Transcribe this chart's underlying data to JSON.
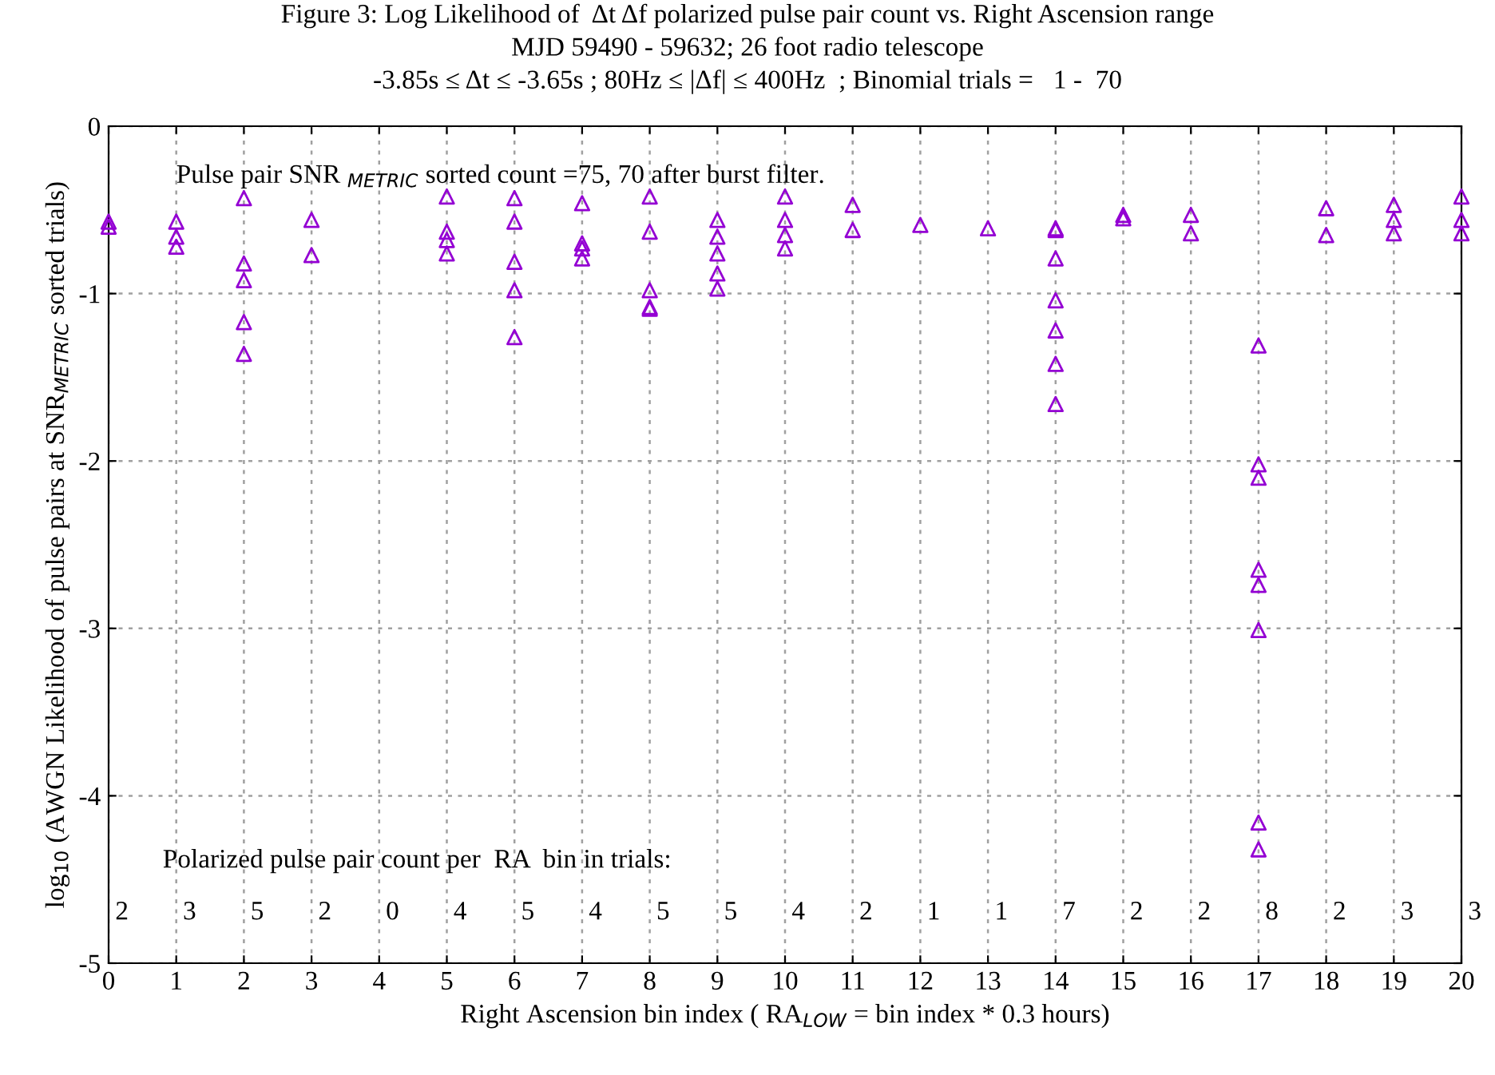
{
  "chart_data": {
    "type": "scatter",
    "title": "Figure 3: Log Likelihood of  Δt Δf polarized pulse pair count vs. Right Ascension range",
    "subtitle": "MJD 59490 - 59632; 26 foot radio telescope\n-3.85s ≤ Δt ≤ -3.65s ; 80Hz ≤ |Δf| ≤ 400Hz  ; Binomial trials =   1 -  70",
    "xlabel": "Right Ascension bin index ( RA$_{LOW}$ = bin index * 0.3 hours)",
    "ylabel": "log$_{10}$ (AWGN Likelihood of pulse pairs at SNR$_{METRIC}$ sorted trials)",
    "series": [
      {
        "color": "#9400d3",
        "x": [
          0,
          0,
          1,
          1,
          1,
          2,
          2,
          2,
          2,
          2,
          3,
          3,
          5,
          5,
          5,
          5,
          6,
          6,
          6,
          6,
          6,
          7,
          7,
          7,
          7,
          8,
          8,
          8,
          8,
          8,
          9,
          9,
          9,
          9,
          9,
          10,
          10,
          10,
          10,
          11,
          11,
          12,
          13,
          14,
          14,
          14,
          14,
          14,
          14,
          14,
          15,
          15,
          16,
          16,
          17,
          17,
          17,
          17,
          17,
          17,
          17,
          17,
          18,
          18,
          19,
          19,
          19,
          20,
          20,
          20
        ],
        "values": [
          -0.57,
          -0.6,
          -0.57,
          -0.66,
          -0.72,
          -0.43,
          -0.82,
          -0.92,
          -1.17,
          -1.36,
          -0.56,
          -0.77,
          -0.42,
          -0.63,
          -0.68,
          -0.76,
          -0.43,
          -0.57,
          -0.81,
          -0.98,
          -1.26,
          -0.46,
          -0.7,
          -0.73,
          -0.79,
          -0.42,
          -0.63,
          -0.98,
          -1.08,
          -1.09,
          -0.56,
          -0.66,
          -0.76,
          -0.88,
          -0.97,
          -0.42,
          -0.56,
          -0.65,
          -0.73,
          -0.47,
          -0.62,
          -0.59,
          -0.61,
          -0.61,
          -0.62,
          -0.79,
          -1.04,
          -1.22,
          -1.42,
          -1.66,
          -0.53,
          -0.55,
          -0.53,
          -0.64,
          -1.31,
          -2.02,
          -2.1,
          -2.65,
          -2.74,
          -3.01,
          -4.16,
          -4.32,
          -0.49,
          -0.65,
          -0.47,
          -0.56,
          -0.64,
          -0.42,
          -0.56,
          -0.64
        ]
      }
    ],
    "marker": "triangle",
    "xlim": [
      0,
      20
    ],
    "ylim": [
      -5,
      0
    ],
    "xticks": [
      0,
      1,
      2,
      3,
      4,
      5,
      6,
      7,
      8,
      9,
      10,
      11,
      12,
      13,
      14,
      15,
      16,
      17,
      18,
      19,
      20
    ],
    "yticks": [
      -5,
      -4,
      -3,
      -2,
      -1,
      0
    ],
    "grid": true,
    "annotations": [
      "Pulse pair SNR $_{METRIC}$ sorted count =75, 70 after burst filter.",
      "Polarized pulse pair count per  RA  bin in trials:",
      "2",
      "3",
      "5",
      "2",
      "0",
      "4",
      "5",
      "4",
      "5",
      "5",
      "4",
      "2",
      "1",
      "1",
      "7",
      "2",
      "2",
      "8",
      "2",
      "3",
      "3"
    ]
  }
}
